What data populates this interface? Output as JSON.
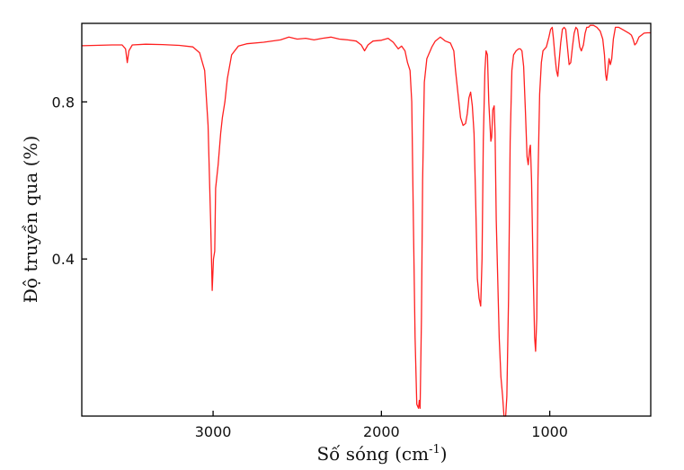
{
  "chart_data": {
    "type": "line",
    "title": "",
    "xlabel": "Số sóng (cm",
    "xlabel_sup": "-1",
    "xlabel_end": ")",
    "ylabel": "Độ truyền qua (%)",
    "xlim": [
      3780,
      400
    ],
    "ylim": [
      0,
      1.0
    ],
    "x_reversed": true,
    "grid": false,
    "x_ticks": [
      3000,
      2000,
      1000
    ],
    "x_tick_labels": [
      "3000",
      "2000",
      "1000"
    ],
    "y_ticks": [
      0.4,
      0.8
    ],
    "y_tick_labels": [
      "0.4",
      "0.8"
    ],
    "series": [
      {
        "color": "#ff2020",
        "points": [
          [
            3780,
            0.943
          ],
          [
            3700,
            0.944
          ],
          [
            3600,
            0.945
          ],
          [
            3540,
            0.945
          ],
          [
            3520,
            0.935
          ],
          [
            3510,
            0.9
          ],
          [
            3500,
            0.93
          ],
          [
            3480,
            0.945
          ],
          [
            3400,
            0.947
          ],
          [
            3300,
            0.946
          ],
          [
            3200,
            0.944
          ],
          [
            3120,
            0.94
          ],
          [
            3080,
            0.925
          ],
          [
            3050,
            0.88
          ],
          [
            3030,
            0.74
          ],
          [
            3015,
            0.5
          ],
          [
            3005,
            0.32
          ],
          [
            2998,
            0.4
          ],
          [
            2990,
            0.42
          ],
          [
            2985,
            0.58
          ],
          [
            2970,
            0.64
          ],
          [
            2955,
            0.72
          ],
          [
            2945,
            0.76
          ],
          [
            2930,
            0.8
          ],
          [
            2915,
            0.86
          ],
          [
            2890,
            0.92
          ],
          [
            2850,
            0.942
          ],
          [
            2800,
            0.948
          ],
          [
            2700,
            0.952
          ],
          [
            2600,
            0.958
          ],
          [
            2550,
            0.965
          ],
          [
            2500,
            0.96
          ],
          [
            2450,
            0.962
          ],
          [
            2400,
            0.958
          ],
          [
            2350,
            0.962
          ],
          [
            2300,
            0.965
          ],
          [
            2250,
            0.96
          ],
          [
            2200,
            0.958
          ],
          [
            2150,
            0.955
          ],
          [
            2120,
            0.945
          ],
          [
            2100,
            0.93
          ],
          [
            2080,
            0.945
          ],
          [
            2050,
            0.955
          ],
          [
            2000,
            0.957
          ],
          [
            1960,
            0.962
          ],
          [
            1930,
            0.952
          ],
          [
            1900,
            0.935
          ],
          [
            1880,
            0.942
          ],
          [
            1860,
            0.93
          ],
          [
            1845,
            0.9
          ],
          [
            1830,
            0.88
          ],
          [
            1820,
            0.8
          ],
          [
            1810,
            0.5
          ],
          [
            1800,
            0.2
          ],
          [
            1790,
            0.03
          ],
          [
            1780,
            0.02
          ],
          [
            1775,
            0.04
          ],
          [
            1770,
            0.02
          ],
          [
            1762,
            0.25
          ],
          [
            1755,
            0.6
          ],
          [
            1745,
            0.85
          ],
          [
            1730,
            0.91
          ],
          [
            1700,
            0.94
          ],
          [
            1680,
            0.955
          ],
          [
            1650,
            0.965
          ],
          [
            1620,
            0.955
          ],
          [
            1590,
            0.95
          ],
          [
            1570,
            0.93
          ],
          [
            1560,
            0.88
          ],
          [
            1545,
            0.82
          ],
          [
            1530,
            0.76
          ],
          [
            1515,
            0.74
          ],
          [
            1500,
            0.745
          ],
          [
            1490,
            0.77
          ],
          [
            1480,
            0.81
          ],
          [
            1470,
            0.825
          ],
          [
            1460,
            0.79
          ],
          [
            1450,
            0.72
          ],
          [
            1440,
            0.55
          ],
          [
            1430,
            0.35
          ],
          [
            1420,
            0.3
          ],
          [
            1410,
            0.28
          ],
          [
            1402,
            0.4
          ],
          [
            1395,
            0.7
          ],
          [
            1385,
            0.88
          ],
          [
            1378,
            0.93
          ],
          [
            1370,
            0.92
          ],
          [
            1362,
            0.8
          ],
          [
            1350,
            0.7
          ],
          [
            1345,
            0.71
          ],
          [
            1338,
            0.78
          ],
          [
            1330,
            0.79
          ],
          [
            1325,
            0.72
          ],
          [
            1318,
            0.5
          ],
          [
            1300,
            0.2
          ],
          [
            1290,
            0.1
          ],
          [
            1280,
            0.05
          ],
          [
            1272,
            0.0
          ],
          [
            1262,
            0.0
          ],
          [
            1255,
            0.05
          ],
          [
            1245,
            0.3
          ],
          [
            1235,
            0.7
          ],
          [
            1225,
            0.88
          ],
          [
            1215,
            0.92
          ],
          [
            1200,
            0.93
          ],
          [
            1185,
            0.935
          ],
          [
            1175,
            0.935
          ],
          [
            1165,
            0.93
          ],
          [
            1155,
            0.89
          ],
          [
            1145,
            0.78
          ],
          [
            1135,
            0.66
          ],
          [
            1128,
            0.64
          ],
          [
            1120,
            0.68
          ],
          [
            1115,
            0.69
          ],
          [
            1108,
            0.6
          ],
          [
            1100,
            0.4
          ],
          [
            1090,
            0.2
          ],
          [
            1084,
            0.165
          ],
          [
            1077,
            0.25
          ],
          [
            1070,
            0.6
          ],
          [
            1060,
            0.82
          ],
          [
            1050,
            0.9
          ],
          [
            1040,
            0.93
          ],
          [
            1020,
            0.94
          ],
          [
            1005,
            0.965
          ],
          [
            995,
            0.985
          ],
          [
            985,
            0.99
          ],
          [
            978,
            0.96
          ],
          [
            970,
            0.92
          ],
          [
            960,
            0.88
          ],
          [
            952,
            0.865
          ],
          [
            945,
            0.9
          ],
          [
            935,
            0.95
          ],
          [
            925,
            0.985
          ],
          [
            915,
            0.99
          ],
          [
            905,
            0.985
          ],
          [
            895,
            0.94
          ],
          [
            885,
            0.895
          ],
          [
            875,
            0.9
          ],
          [
            865,
            0.94
          ],
          [
            855,
            0.975
          ],
          [
            845,
            0.99
          ],
          [
            835,
            0.985
          ],
          [
            822,
            0.94
          ],
          [
            812,
            0.93
          ],
          [
            800,
            0.945
          ],
          [
            790,
            0.975
          ],
          [
            780,
            0.99
          ],
          [
            770,
            0.99
          ],
          [
            760,
            0.995
          ],
          [
            740,
            0.995
          ],
          [
            720,
            0.99
          ],
          [
            700,
            0.98
          ],
          [
            685,
            0.96
          ],
          [
            675,
            0.92
          ],
          [
            668,
            0.87
          ],
          [
            662,
            0.855
          ],
          [
            655,
            0.88
          ],
          [
            648,
            0.91
          ],
          [
            640,
            0.895
          ],
          [
            632,
            0.91
          ],
          [
            622,
            0.96
          ],
          [
            610,
            0.99
          ],
          [
            590,
            0.99
          ],
          [
            570,
            0.985
          ],
          [
            550,
            0.98
          ],
          [
            530,
            0.975
          ],
          [
            515,
            0.97
          ],
          [
            505,
            0.96
          ],
          [
            495,
            0.945
          ],
          [
            485,
            0.95
          ],
          [
            470,
            0.965
          ],
          [
            455,
            0.97
          ],
          [
            440,
            0.975
          ],
          [
            420,
            0.976
          ],
          [
            400,
            0.976
          ]
        ]
      }
    ]
  }
}
